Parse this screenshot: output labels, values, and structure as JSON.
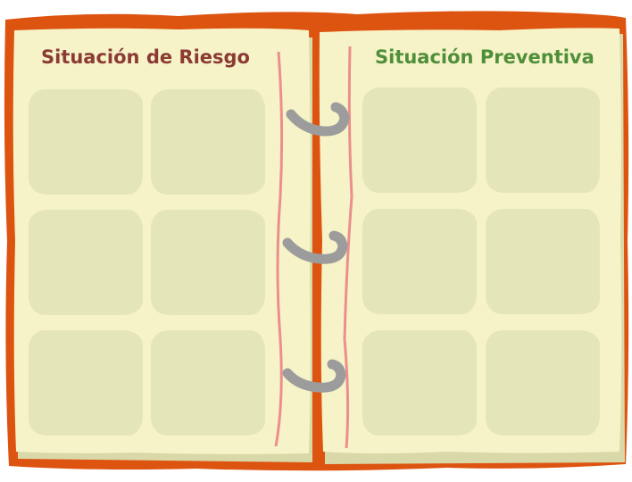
{
  "board": {
    "left_page": {
      "title": "Situación de Riesgo",
      "title_color": "#8b3a34",
      "slot_count": 6
    },
    "right_page": {
      "title": "Situación Preventiva",
      "title_color": "#4f8f3a",
      "slot_count": 6
    },
    "colors": {
      "cover": "#dd5410",
      "page": "#f6f3c8",
      "page_shadow": "#d9d8a8",
      "slot": "#e5e6b8",
      "margin_line": "#ec8f8c",
      "ring": "#9c9c9c"
    },
    "ring_count": 3
  }
}
